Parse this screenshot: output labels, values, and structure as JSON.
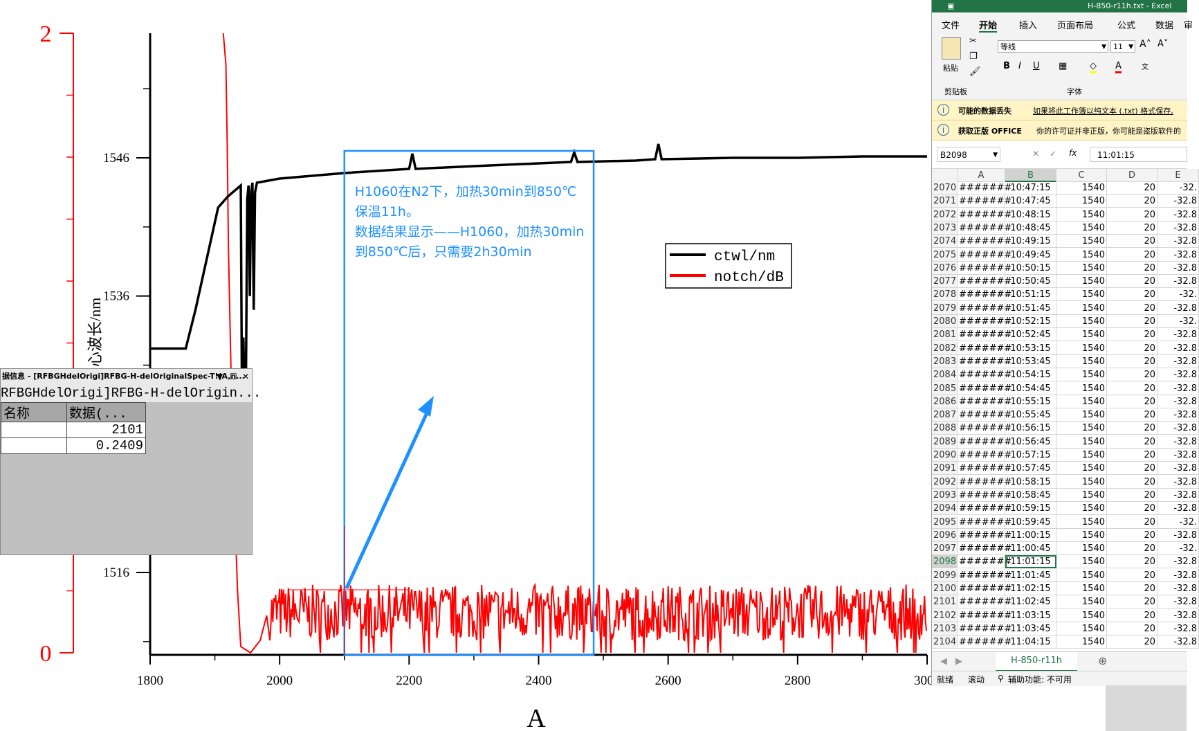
{
  "chart_data": {
    "type": "line",
    "xlabel": "A",
    "ylabel_left": "",
    "ylabel_right_partial": "心波长/nm",
    "x_ticks": [
      1800,
      2000,
      2200,
      2400,
      2600,
      2800,
      3000
    ],
    "x_tick_labels": [
      "1800",
      "2000",
      "2200",
      "2400",
      "2600",
      "2800",
      "3000"
    ],
    "xlim": [
      1800,
      3000
    ],
    "y_wavelength_ticks": [
      1516,
      1536,
      1546
    ],
    "y_wavelength_tick_labels": [
      "1516",
      "1536",
      "1546"
    ],
    "y_wavelength_lim": [
      1510,
      1555
    ],
    "y_notch_ticks": [
      0,
      2
    ],
    "y_notch_tick_labels": [
      "0",
      "2"
    ],
    "y_notch_lim": [
      0,
      2
    ],
    "legend": {
      "position": "right",
      "entries": [
        "ctwl/nm",
        "notch/dB"
      ]
    },
    "series": [
      {
        "name": "ctwl/nm",
        "color": "#000000",
        "axis": "wavelength",
        "points": [
          [
            1800,
            1532.2
          ],
          [
            1855,
            1532.2
          ],
          [
            1870,
            1535
          ],
          [
            1905,
            1542.4
          ],
          [
            1920,
            1543.2
          ],
          [
            1940,
            1544
          ],
          [
            1942,
            1527
          ],
          [
            1944,
            1533
          ],
          [
            1946,
            1528
          ],
          [
            1948,
            1530
          ],
          [
            1950,
            1543
          ],
          [
            1952,
            1544
          ],
          [
            1954,
            1536
          ],
          [
            1956,
            1543.5
          ],
          [
            1958,
            1544.2
          ],
          [
            1960,
            1535
          ],
          [
            1962,
            1543.5
          ],
          [
            1965,
            1544.2
          ],
          [
            2000,
            1544.5
          ],
          [
            2100,
            1544.9
          ],
          [
            2200,
            1545.2
          ],
          [
            2205,
            1546.3
          ],
          [
            2210,
            1545.2
          ],
          [
            2300,
            1545.4
          ],
          [
            2400,
            1545.6
          ],
          [
            2450,
            1545.7
          ],
          [
            2455,
            1546.4
          ],
          [
            2460,
            1545.7
          ],
          [
            2550,
            1545.8
          ],
          [
            2580,
            1545.9
          ],
          [
            2585,
            1547.0
          ],
          [
            2590,
            1545.9
          ],
          [
            2700,
            1546.0
          ],
          [
            2800,
            1546.0
          ],
          [
            2900,
            1546.1
          ],
          [
            3000,
            1546.1
          ]
        ]
      },
      {
        "name": "notch/dB",
        "color": "#ff0000",
        "axis": "notch",
        "points": [
          [
            1913,
            2.0
          ],
          [
            1915,
            1.95
          ],
          [
            1917,
            1.9
          ],
          [
            1919,
            1.65
          ],
          [
            1921,
            1.3
          ],
          [
            1925,
            0.9
          ],
          [
            1930,
            0.5
          ],
          [
            1935,
            0.2
          ],
          [
            1940,
            0.02
          ],
          [
            1955,
            0.0
          ],
          [
            1970,
            0.04
          ],
          [
            1980,
            0.12
          ]
        ],
        "noise_band": {
          "x_start": 1985,
          "x_end": 3000,
          "min": 0.04,
          "max": 0.22
        }
      }
    ],
    "annotation": {
      "lines": [
        "H1060在N2下，加热30min到850℃",
        "保温11h。",
        "数据结果显示——H1060，加热30min",
        "到850℃后，只需要2h30min"
      ],
      "box_x": [
        2100,
        2485
      ],
      "marker_x": 2100
    }
  },
  "info_window": {
    "title": "据信息 - [RFBGHdelOrigi]RFBG-H-delOriginalSpec-T!(A,n...",
    "path": "RFBGHdelOrigi]RFBG-H-delOrigin...",
    "col1_header": "名称",
    "col2_header": "数据(...",
    "rows": [
      {
        "value": "2101"
      },
      {
        "value": "0.2409"
      }
    ]
  },
  "excel": {
    "title": "H-850-r11h.txt - Excel",
    "tabs": [
      "文件",
      "开始",
      "插入",
      "页面布局",
      "公式",
      "数据",
      "审"
    ],
    "active_tab": "开始",
    "clipboard_label": "剪贴板",
    "paste_label": "粘贴",
    "font_group_label": "字体",
    "font_name": "等线",
    "font_size": "11",
    "msg1_bold": "可能的数据丢失",
    "msg1_text": "如果将此工作簿以纯文本 (.txt) 格式保存,",
    "msg2_bold": "获取正版 OFFICE",
    "msg2_text": "你的许可证并非正版，你可能是盗版软件的",
    "name_box": "B2098",
    "formula_value": "11:01:15",
    "col_headers": [
      "A",
      "B",
      "C",
      "D",
      "E"
    ],
    "rows": [
      {
        "n": "2070",
        "a": "#######",
        "b": "10:47:15",
        "c": "1540",
        "d": "20",
        "e": "-32."
      },
      {
        "n": "2071",
        "a": "#######",
        "b": "10:47:45",
        "c": "1540",
        "d": "20",
        "e": "-32.8"
      },
      {
        "n": "2072",
        "a": "#######",
        "b": "10:48:15",
        "c": "1540",
        "d": "20",
        "e": "-32.8"
      },
      {
        "n": "2073",
        "a": "#######",
        "b": "10:48:45",
        "c": "1540",
        "d": "20",
        "e": "-32.8"
      },
      {
        "n": "2074",
        "a": "#######",
        "b": "10:49:15",
        "c": "1540",
        "d": "20",
        "e": "-32.8"
      },
      {
        "n": "2075",
        "a": "#######",
        "b": "10:49:45",
        "c": "1540",
        "d": "20",
        "e": "-32.8"
      },
      {
        "n": "2076",
        "a": "#######",
        "b": "10:50:15",
        "c": "1540",
        "d": "20",
        "e": "-32.8"
      },
      {
        "n": "2077",
        "a": "#######",
        "b": "10:50:45",
        "c": "1540",
        "d": "20",
        "e": "-32.8"
      },
      {
        "n": "2078",
        "a": "#######",
        "b": "10:51:15",
        "c": "1540",
        "d": "20",
        "e": "-32."
      },
      {
        "n": "2079",
        "a": "#######",
        "b": "10:51:45",
        "c": "1540",
        "d": "20",
        "e": "-32.8"
      },
      {
        "n": "2080",
        "a": "#######",
        "b": "10:52:15",
        "c": "1540",
        "d": "20",
        "e": "-32."
      },
      {
        "n": "2081",
        "a": "#######",
        "b": "10:52:45",
        "c": "1540",
        "d": "20",
        "e": "-32.8"
      },
      {
        "n": "2082",
        "a": "#######",
        "b": "10:53:15",
        "c": "1540",
        "d": "20",
        "e": "-32.8"
      },
      {
        "n": "2083",
        "a": "#######",
        "b": "10:53:45",
        "c": "1540",
        "d": "20",
        "e": "-32.8"
      },
      {
        "n": "2084",
        "a": "#######",
        "b": "10:54:15",
        "c": "1540",
        "d": "20",
        "e": "-32.8"
      },
      {
        "n": "2085",
        "a": "#######",
        "b": "10:54:45",
        "c": "1540",
        "d": "20",
        "e": "-32.8"
      },
      {
        "n": "2086",
        "a": "#######",
        "b": "10:55:15",
        "c": "1540",
        "d": "20",
        "e": "-32.8"
      },
      {
        "n": "2087",
        "a": "#######",
        "b": "10:55:45",
        "c": "1540",
        "d": "20",
        "e": "-32.8"
      },
      {
        "n": "2088",
        "a": "#######",
        "b": "10:56:15",
        "c": "1540",
        "d": "20",
        "e": "-32.8"
      },
      {
        "n": "2089",
        "a": "#######",
        "b": "10:56:45",
        "c": "1540",
        "d": "20",
        "e": "-32.8"
      },
      {
        "n": "2090",
        "a": "#######",
        "b": "10:57:15",
        "c": "1540",
        "d": "20",
        "e": "-32.8"
      },
      {
        "n": "2091",
        "a": "#######",
        "b": "10:57:45",
        "c": "1540",
        "d": "20",
        "e": "-32.8"
      },
      {
        "n": "2092",
        "a": "#######",
        "b": "10:58:15",
        "c": "1540",
        "d": "20",
        "e": "-32.8"
      },
      {
        "n": "2093",
        "a": "#######",
        "b": "10:58:45",
        "c": "1540",
        "d": "20",
        "e": "-32.8"
      },
      {
        "n": "2094",
        "a": "#######",
        "b": "10:59:15",
        "c": "1540",
        "d": "20",
        "e": "-32.8"
      },
      {
        "n": "2095",
        "a": "#######",
        "b": "10:59:45",
        "c": "1540",
        "d": "20",
        "e": "-32."
      },
      {
        "n": "2096",
        "a": "#######",
        "b": "11:00:15",
        "c": "1540",
        "d": "20",
        "e": "-32.8"
      },
      {
        "n": "2097",
        "a": "#######",
        "b": "11:00:45",
        "c": "1540",
        "d": "20",
        "e": "-32."
      },
      {
        "n": "2098",
        "a": "#######",
        "b": "11:01:15",
        "c": "1540",
        "d": "20",
        "e": "-32.8"
      },
      {
        "n": "2099",
        "a": "#######",
        "b": "11:01:45",
        "c": "1540",
        "d": "20",
        "e": "-32.8"
      },
      {
        "n": "2100",
        "a": "#######",
        "b": "11:02:15",
        "c": "1540",
        "d": "20",
        "e": "-32.8"
      },
      {
        "n": "2101",
        "a": "#######",
        "b": "11:02:45",
        "c": "1540",
        "d": "20",
        "e": "-32.8"
      },
      {
        "n": "2102",
        "a": "#######",
        "b": "11:03:15",
        "c": "1540",
        "d": "20",
        "e": "-32.8"
      },
      {
        "n": "2103",
        "a": "#######",
        "b": "11:03:45",
        "c": "1540",
        "d": "20",
        "e": "-32.8"
      },
      {
        "n": "2104",
        "a": "#######",
        "b": "11:04:15",
        "c": "1540",
        "d": "20",
        "e": "-32.8"
      }
    ],
    "selected_row": "2098",
    "sheet_tab": "H-850-r11h",
    "status_ready": "就绪",
    "status_scroll": "滚动",
    "status_accessibility": "辅助功能: 不可用"
  }
}
